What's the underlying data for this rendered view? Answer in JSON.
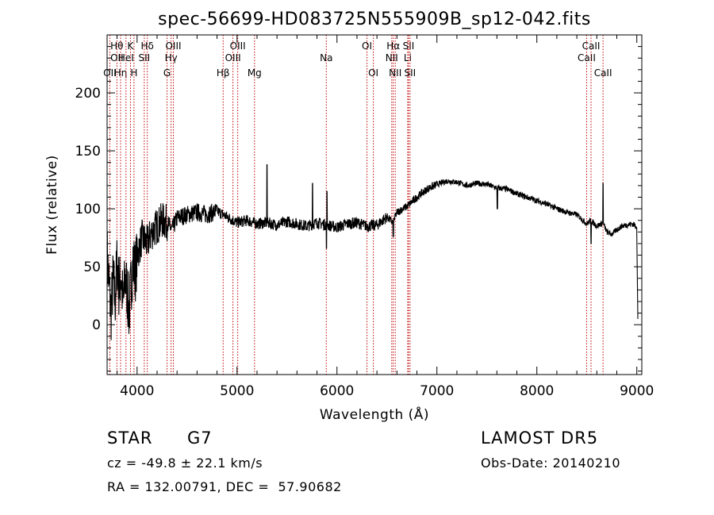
{
  "chart_data": {
    "type": "line",
    "title": "spec-56699-HD083725N555909B_sp12-042.fits",
    "xlabel": "Wavelength (Å)",
    "ylabel": "Flux (relative)",
    "xlim": [
      3700,
      9050
    ],
    "ylim": [
      -43,
      250
    ],
    "xticks": [
      4000,
      5000,
      6000,
      7000,
      8000,
      9000
    ],
    "yticks": [
      0,
      50,
      100,
      150,
      200
    ],
    "x_minor_step": 200,
    "y_minor_step": 10,
    "grid": false,
    "line_color": "#000000",
    "marker_color": "#c00000",
    "spectrum": {
      "x": [
        3700,
        3720,
        3740,
        3760,
        3780,
        3800,
        3820,
        3840,
        3860,
        3880,
        3900,
        3920,
        3940,
        3960,
        3980,
        4000,
        4050,
        4100,
        4150,
        4200,
        4250,
        4300,
        4350,
        4400,
        4500,
        4600,
        4700,
        4800,
        4900,
        5000,
        5100,
        5200,
        5300,
        5400,
        5500,
        5600,
        5700,
        5800,
        5900,
        6000,
        6100,
        6200,
        6300,
        6400,
        6500,
        6560,
        6600,
        6700,
        6800,
        6900,
        7000,
        7100,
        7200,
        7300,
        7400,
        7500,
        7600,
        7700,
        7800,
        7900,
        8000,
        8100,
        8200,
        8300,
        8400,
        8500,
        8540,
        8600,
        8660,
        8700,
        8750,
        8800,
        8850,
        8900,
        8950,
        9000,
        9010
      ],
      "y": [
        60,
        35,
        10,
        40,
        20,
        55,
        30,
        45,
        15,
        40,
        30,
        10,
        35,
        55,
        45,
        60,
        75,
        70,
        80,
        85,
        90,
        88,
        82,
        92,
        95,
        97,
        95,
        98,
        93,
        88,
        90,
        87,
        88,
        86,
        89,
        87,
        85,
        88,
        86,
        84,
        87,
        88,
        85,
        86,
        93,
        88,
        97,
        102,
        110,
        117,
        121,
        124,
        123,
        120,
        122,
        121,
        118,
        117,
        113,
        110,
        107,
        104,
        100,
        97,
        95,
        87,
        90,
        85,
        88,
        80,
        78,
        82,
        85,
        86,
        87,
        85,
        5
      ]
    },
    "spikes": [
      {
        "x": 5300,
        "y": 138
      },
      {
        "x": 5755,
        "y": 122
      },
      {
        "x": 5900,
        "y": 115
      },
      {
        "x": 8662,
        "y": 122
      }
    ],
    "dips": [
      {
        "x": 5895,
        "y": 66
      },
      {
        "x": 6563,
        "y": 76
      },
      {
        "x": 7605,
        "y": 100
      },
      {
        "x": 8542,
        "y": 70
      },
      {
        "x": 8662,
        "y": 60
      }
    ],
    "line_markers": [
      {
        "x": 3727,
        "labels": [
          {
            "text": "OII",
            "row": 3
          }
        ]
      },
      {
        "x": 3798,
        "labels": [
          {
            "text": "Hθ",
            "row": 1
          },
          {
            "text": "OII",
            "row": 2
          }
        ]
      },
      {
        "x": 3835,
        "labels": [
          {
            "text": "Hη",
            "row": 3
          }
        ]
      },
      {
        "x": 3889,
        "labels": [
          {
            "text": "HeI",
            "row": 2
          }
        ]
      },
      {
        "x": 3934,
        "labels": [
          {
            "text": "K",
            "row": 1
          }
        ]
      },
      {
        "x": 3969,
        "labels": [
          {
            "text": "H",
            "row": 3
          }
        ]
      },
      {
        "x": 4072,
        "labels": [
          {
            "text": "SII",
            "row": 2
          }
        ]
      },
      {
        "x": 4102,
        "labels": [
          {
            "text": "Hδ",
            "row": 1
          }
        ]
      },
      {
        "x": 4300,
        "labels": [
          {
            "text": "G",
            "row": 3
          }
        ]
      },
      {
        "x": 4340,
        "labels": [
          {
            "text": "Hγ",
            "row": 2
          }
        ]
      },
      {
        "x": 4363,
        "labels": [
          {
            "text": "OIII",
            "row": 1
          }
        ]
      },
      {
        "x": 4861,
        "labels": [
          {
            "text": "Hβ",
            "row": 3
          }
        ]
      },
      {
        "x": 4959,
        "labels": [
          {
            "text": "OIII",
            "row": 2
          }
        ]
      },
      {
        "x": 5007,
        "labels": [
          {
            "text": "OIII",
            "row": 1
          }
        ]
      },
      {
        "x": 5175,
        "labels": [
          {
            "text": "Mg",
            "row": 3
          }
        ]
      },
      {
        "x": 5893,
        "labels": [
          {
            "text": "Na",
            "row": 2
          }
        ]
      },
      {
        "x": 6300,
        "labels": [
          {
            "text": "OI",
            "row": 1
          }
        ]
      },
      {
        "x": 6364,
        "labels": [
          {
            "text": "OI",
            "row": 3
          }
        ]
      },
      {
        "x": 6548,
        "labels": [
          {
            "text": "NII",
            "row": 2
          }
        ]
      },
      {
        "x": 6563,
        "labels": [
          {
            "text": "Hα",
            "row": 1
          }
        ]
      },
      {
        "x": 6583,
        "labels": [
          {
            "text": "NII",
            "row": 3
          }
        ]
      },
      {
        "x": 6708,
        "labels": [
          {
            "text": "Li",
            "row": 2
          }
        ]
      },
      {
        "x": 6716,
        "labels": [
          {
            "text": "SII",
            "row": 1
          }
        ]
      },
      {
        "x": 6731,
        "labels": [
          {
            "text": "SII",
            "row": 3
          }
        ]
      },
      {
        "x": 8498,
        "labels": [
          {
            "text": "CaII",
            "row": 2
          }
        ]
      },
      {
        "x": 8542,
        "labels": [
          {
            "text": "CaII",
            "row": 1
          }
        ]
      },
      {
        "x": 8662,
        "labels": [
          {
            "text": "CaII",
            "row": 3
          }
        ]
      }
    ]
  },
  "info": {
    "object_type": "STAR",
    "subclass": "G7",
    "survey": "LAMOST DR5",
    "redshift": "cz = -49.8 ± 22.1 km/s",
    "obs_date": "Obs-Date: 20140210",
    "coords": "RA = 132.00791, DEC =  57.90682"
  }
}
